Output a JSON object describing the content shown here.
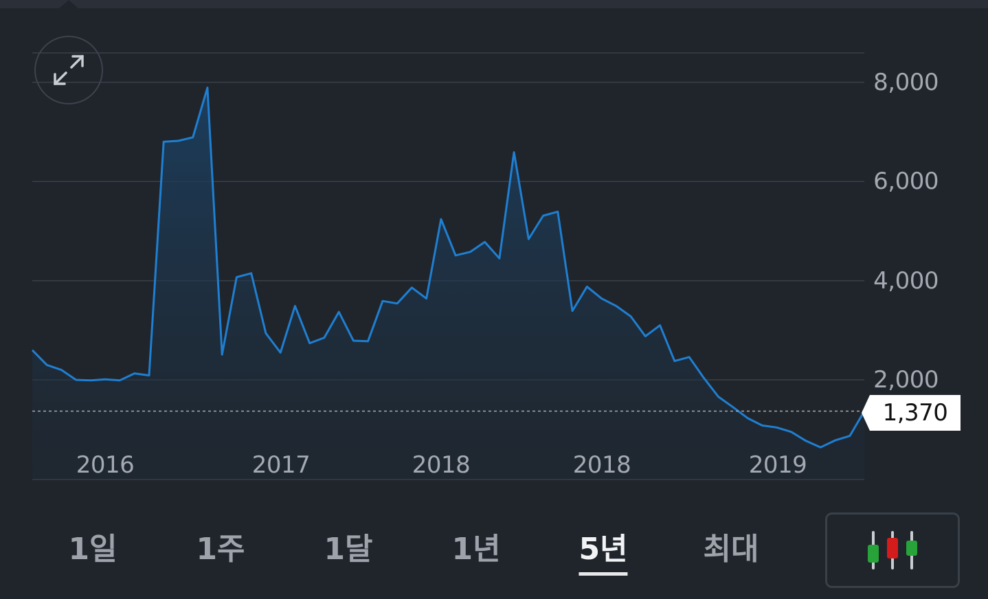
{
  "current_price": "1,370",
  "range_tabs": [
    {
      "label": "1일",
      "active": false
    },
    {
      "label": "1주",
      "active": false
    },
    {
      "label": "1달",
      "active": false
    },
    {
      "label": "1년",
      "active": false
    },
    {
      "label": "5년",
      "active": true
    },
    {
      "label": "최대",
      "active": false
    }
  ],
  "icons": {
    "expand": "expand-icon",
    "chart_type": "candlestick-icon"
  },
  "colors": {
    "line": "#1f7fd1",
    "background": "#20252c",
    "candle_green": "#27a33a",
    "candle_red": "#d41c1c"
  },
  "chart_data": {
    "type": "area",
    "title": "",
    "xlabel": "",
    "ylabel": "",
    "ylim": [
      0,
      8600
    ],
    "y_ticks": [
      "8,000",
      "6,000",
      "4,000",
      "2,000"
    ],
    "x_ticks": [
      "2016",
      "2017",
      "2018",
      "2018",
      "2019"
    ],
    "current_value": 1370,
    "series": [
      {
        "values": [
          2600,
          2300,
          2200,
          2000,
          1990,
          2010,
          1990,
          2130,
          2090,
          6800,
          6820,
          6890,
          7890,
          2510,
          4070,
          4150,
          2940,
          2550,
          3490,
          2740,
          2850,
          3370,
          2790,
          2780,
          3590,
          3540,
          3860,
          3640,
          5240,
          4510,
          4580,
          4780,
          4450,
          6590,
          4840,
          5310,
          5390,
          3390,
          3880,
          3640,
          3490,
          3280,
          2880,
          3100,
          2380,
          2460,
          2040,
          1660,
          1450,
          1230,
          1080,
          1040,
          950,
          770,
          640,
          780,
          870,
          1370
        ]
      }
    ]
  }
}
